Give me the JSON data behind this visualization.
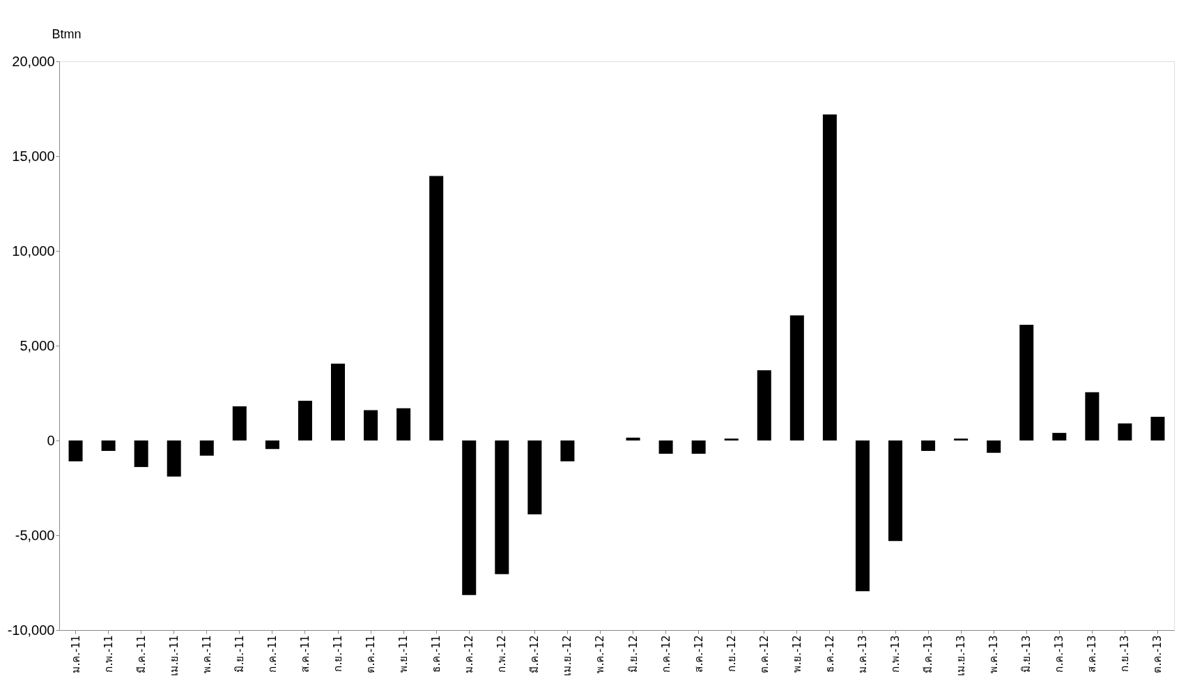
{
  "chart_data": {
    "type": "bar",
    "ylabel": "Btmn",
    "categories": [
      "ม.ค.-11",
      "ก.พ.-11",
      "มี.ค.-11",
      "เม.ย.-11",
      "พ.ค.-11",
      "มิ.ย.-11",
      "ก.ค.-11",
      "ส.ค.-11",
      "ก.ย.-11",
      "ต.ค.-11",
      "พ.ย.-11",
      "ธ.ค.-11",
      "ม.ค.-12",
      "ก.พ.-12",
      "มี.ค.-12",
      "เม.ย.-12",
      "พ.ค.-12",
      "มิ.ย.-12",
      "ก.ค.-12",
      "ส.ค.-12",
      "ก.ย.-12",
      "ต.ค.-12",
      "พ.ย.-12",
      "ธ.ค.-12",
      "ม.ค.-13",
      "ก.พ.-13",
      "มี.ค.-13",
      "เม.ย.-13",
      "พ.ค.-13",
      "มิ.ย.-13",
      "ก.ค.-13",
      "ส.ค.-13",
      "ก.ย.-13",
      "ต.ค.-13"
    ],
    "values": [
      -1100,
      -550,
      -1400,
      -1900,
      -800,
      1800,
      -450,
      2100,
      4050,
      1600,
      1700,
      13950,
      -8150,
      -7050,
      -3900,
      -1100,
      0,
      150,
      -700,
      -700,
      100,
      3700,
      6600,
      17200,
      -7950,
      -5300,
      -550,
      100,
      -650,
      6100,
      400,
      2550,
      900,
      1250
    ],
    "color": "#000000",
    "ylim": [
      -10000,
      20000
    ],
    "yticks": [
      {
        "value": -10000,
        "label": "-10,000"
      },
      {
        "value": -5000,
        "label": "-5,000"
      },
      0,
      {
        "value": 5000,
        "label": "5,000"
      },
      {
        "value": 10000,
        "label": "10,000"
      },
      {
        "value": 15000,
        "label": "15,000"
      },
      {
        "value": 20000,
        "label": "20,000"
      }
    ],
    "grid": false
  }
}
